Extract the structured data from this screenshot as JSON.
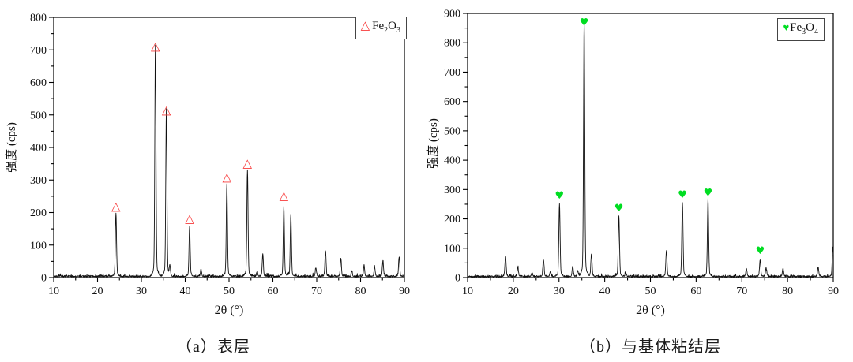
{
  "background": "#ffffff",
  "chart_data": [
    {
      "type": "line",
      "panel": "a",
      "title": "（a）表层",
      "xlabel": "2θ (°)",
      "ylabel": "强度 (cps)",
      "xlim": [
        10,
        90
      ],
      "ylim": [
        0,
        800
      ],
      "x_ticks": [
        10,
        20,
        30,
        40,
        50,
        60,
        70,
        80,
        90
      ],
      "y_ticks": [
        0,
        100,
        200,
        300,
        400,
        500,
        600,
        700,
        800
      ],
      "x_minor_step": 5,
      "y_minor_step": 50,
      "grid": false,
      "line_color": "#111111",
      "noise_level_cps": 8,
      "legend": {
        "position": "top-right",
        "marker_glyph": "△",
        "marker_color": "#f83b3b",
        "label_text": "Fe2O3",
        "formula": [
          {
            "t": "Fe"
          },
          {
            "s": "2"
          },
          {
            "t": "O"
          },
          {
            "s": "3"
          }
        ]
      },
      "peaks": [
        [
          24.2,
          185
        ],
        [
          33.2,
          678
        ],
        [
          35.7,
          488
        ],
        [
          36.5,
          30
        ],
        [
          41.0,
          146
        ],
        [
          43.6,
          20
        ],
        [
          49.5,
          272
        ],
        [
          54.2,
          312
        ],
        [
          56.4,
          15
        ],
        [
          57.7,
          65
        ],
        [
          62.5,
          205
        ],
        [
          64.1,
          182
        ],
        [
          69.8,
          26
        ],
        [
          72.0,
          76
        ],
        [
          75.5,
          54
        ],
        [
          78.0,
          15
        ],
        [
          80.8,
          32
        ],
        [
          83.2,
          28
        ],
        [
          85.1,
          46
        ],
        [
          88.8,
          57
        ]
      ],
      "marked_peaks": [
        [
          24.2,
          207
        ],
        [
          33.2,
          700
        ],
        [
          35.7,
          503
        ],
        [
          41.0,
          170
        ],
        [
          49.5,
          297
        ],
        [
          54.2,
          340
        ],
        [
          62.5,
          240
        ]
      ],
      "marker_font_px": 15
    },
    {
      "type": "line",
      "panel": "b",
      "title": "（b）与基体粘结层",
      "xlabel": "2θ (°)",
      "ylabel": "强度 (cps)",
      "xlim": [
        10,
        90
      ],
      "ylim": [
        0,
        900
      ],
      "x_ticks": [
        10,
        20,
        30,
        40,
        50,
        60,
        70,
        80,
        90
      ],
      "y_ticks": [
        0,
        100,
        200,
        300,
        400,
        500,
        600,
        700,
        800,
        900
      ],
      "x_minor_step": 5,
      "y_minor_step": 50,
      "grid": false,
      "line_color": "#111111",
      "noise_level_cps": 8,
      "legend": {
        "position": "top-right",
        "marker_glyph": "♥",
        "marker_color": "#00dd22",
        "label_text": "Fe3O4",
        "formula": [
          {
            "t": "Fe"
          },
          {
            "s": "3"
          },
          {
            "t": "O"
          },
          {
            "s": "4"
          }
        ]
      },
      "peaks": [
        [
          18.3,
          66
        ],
        [
          21.0,
          28
        ],
        [
          24.1,
          13
        ],
        [
          26.6,
          54
        ],
        [
          28.1,
          15
        ],
        [
          30.1,
          235
        ],
        [
          33.0,
          34
        ],
        [
          34.1,
          18
        ],
        [
          35.5,
          832
        ],
        [
          37.1,
          74
        ],
        [
          43.1,
          196
        ],
        [
          44.6,
          13
        ],
        [
          53.5,
          84
        ],
        [
          57.0,
          240
        ],
        [
          62.6,
          250
        ],
        [
          71.0,
          27
        ],
        [
          74.0,
          52
        ],
        [
          75.3,
          28
        ],
        [
          79.0,
          27
        ],
        [
          86.7,
          30
        ],
        [
          89.9,
          95
        ]
      ],
      "marked_peaks": [
        [
          30.1,
          268
        ],
        [
          35.5,
          858
        ],
        [
          43.1,
          226
        ],
        [
          57.0,
          272
        ],
        [
          62.6,
          278
        ],
        [
          74.0,
          80
        ]
      ],
      "marker_font_px": 13
    }
  ]
}
